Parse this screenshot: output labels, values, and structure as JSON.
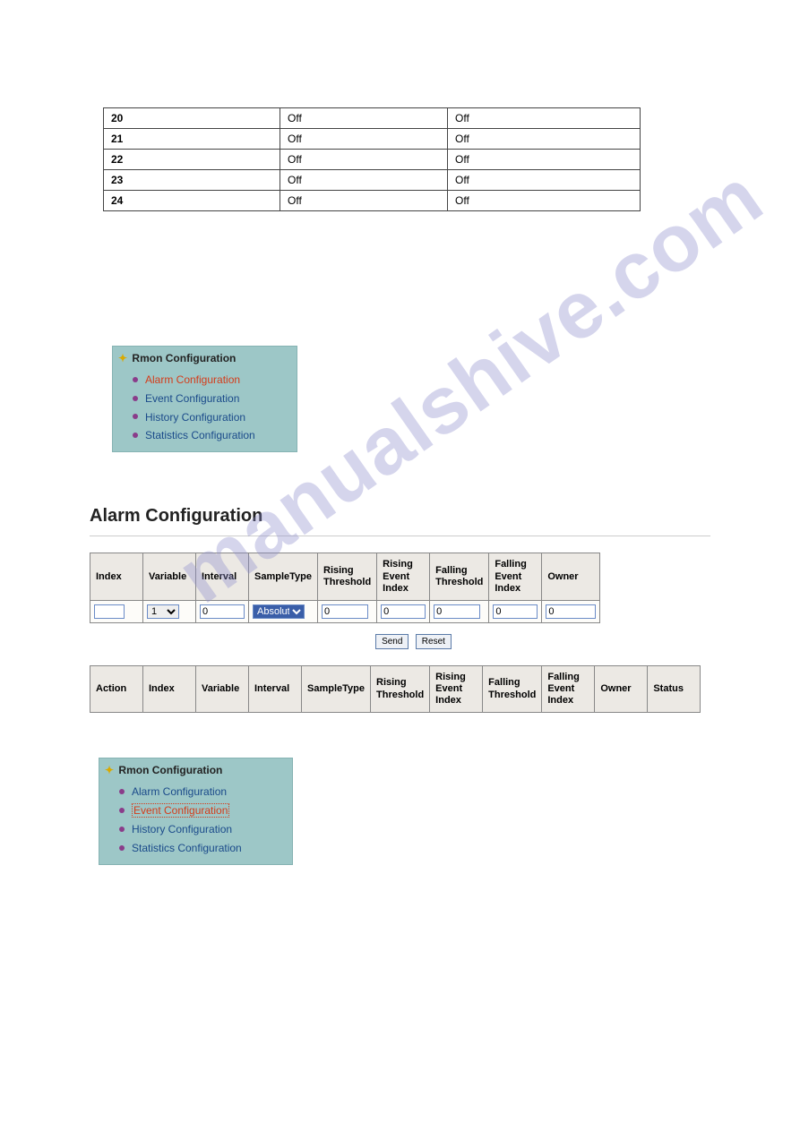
{
  "watermark": "manualshive.com",
  "off_table": {
    "rows": [
      [
        "20",
        "Off",
        "Off"
      ],
      [
        "21",
        "Off",
        "Off"
      ],
      [
        "22",
        "Off",
        "Off"
      ],
      [
        "23",
        "Off",
        "Off"
      ],
      [
        "24",
        "Off",
        "Off"
      ]
    ]
  },
  "rmon1": {
    "title": "Rmon Configuration",
    "items": [
      {
        "label": "Alarm Configuration",
        "style": "active-red"
      },
      {
        "label": "Event Configuration",
        "style": ""
      },
      {
        "label": "History Configuration",
        "style": ""
      },
      {
        "label": "Statistics Configuration",
        "style": ""
      }
    ]
  },
  "section_title": "Alarm Configuration",
  "alarm_form": {
    "headers": [
      "Index",
      "Variable",
      "Interval",
      "SampleType",
      "Rising Threshold",
      "Rising Event Index",
      "Falling Threshold",
      "Falling Event Index",
      "Owner"
    ],
    "values": {
      "index": "",
      "variable": "1",
      "interval": "0",
      "sample_type": "Absolute",
      "rising_thr": "0",
      "rising_evt": "0",
      "falling_thr": "0",
      "falling_evt": "0",
      "owner": "0"
    }
  },
  "buttons": {
    "send": "Send",
    "reset": "Reset"
  },
  "alarm_result": {
    "headers": [
      "Action",
      "Index",
      "Variable",
      "Interval",
      "SampleType",
      "Rising Threshold",
      "Rising Event Index",
      "Falling Threshold",
      "Falling Event Index",
      "Owner",
      "Status"
    ]
  },
  "rmon2": {
    "title": "Rmon Configuration",
    "items": [
      {
        "label": "Alarm Configuration",
        "style": ""
      },
      {
        "label": "Event Configuration",
        "style": "active-boxed"
      },
      {
        "label": "History Configuration",
        "style": ""
      },
      {
        "label": "Statistics Configuration",
        "style": ""
      }
    ]
  }
}
